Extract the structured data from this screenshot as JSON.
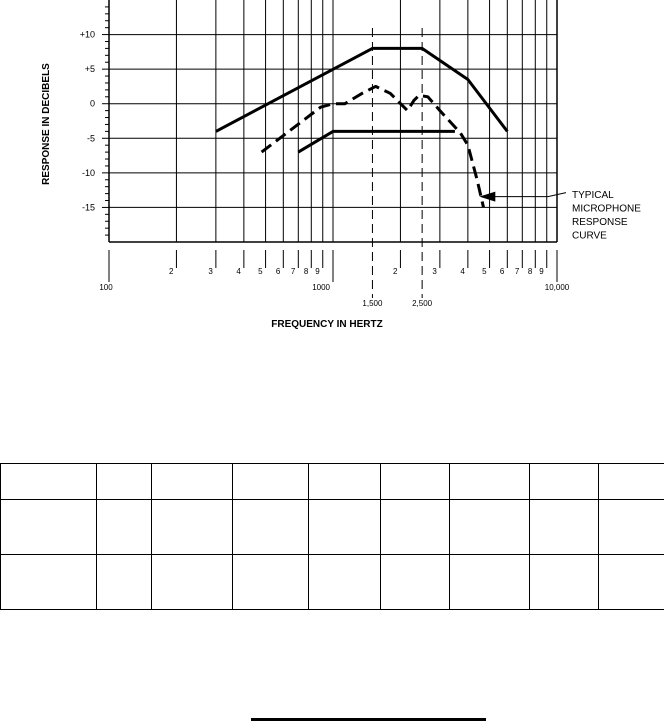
{
  "chart_data": {
    "type": "line",
    "title": "",
    "xlabel": "FREQUENCY IN HERTZ",
    "ylabel": "RESPONSE IN DECIBELS",
    "x_scale": "log",
    "xlim": [
      100,
      10000
    ],
    "ylim": [
      -20,
      15
    ],
    "y_ticks": [
      10,
      5,
      0,
      -5,
      -10,
      -15
    ],
    "y_tick_labels": [
      "+10",
      "+5",
      "0",
      "-5",
      "-10",
      "-15"
    ],
    "x_major_labels": [
      {
        "x": 100,
        "label": "100"
      },
      {
        "x": 1000,
        "label": "1000"
      },
      {
        "x": 10000,
        "label": "10,000"
      }
    ],
    "x_minor_labels": [
      {
        "x": 200,
        "label": "2"
      },
      {
        "x": 300,
        "label": "3"
      },
      {
        "x": 400,
        "label": "4"
      },
      {
        "x": 500,
        "label": "5"
      },
      {
        "x": 600,
        "label": "6"
      },
      {
        "x": 700,
        "label": "7"
      },
      {
        "x": 800,
        "label": "8"
      },
      {
        "x": 900,
        "label": "9"
      },
      {
        "x": 2000,
        "label": "2"
      },
      {
        "x": 3000,
        "label": "3"
      },
      {
        "x": 4000,
        "label": "4"
      },
      {
        "x": 5000,
        "label": "5"
      },
      {
        "x": 6000,
        "label": "6"
      },
      {
        "x": 7000,
        "label": "7"
      },
      {
        "x": 8000,
        "label": "8"
      },
      {
        "x": 9000,
        "label": "9"
      }
    ],
    "reference_lines": [
      {
        "x": 1500,
        "label": "1,500"
      },
      {
        "x": 2500,
        "label": "2,500"
      }
    ],
    "grid": true,
    "series": [
      {
        "style": "solid",
        "x": [
          300,
          1500,
          2500,
          4000,
          6000
        ],
        "y": [
          -4,
          8,
          8,
          3.5,
          -4
        ]
      },
      {
        "style": "solid",
        "x": [
          700,
          1000,
          3500
        ],
        "y": [
          -7,
          -4,
          -4
        ]
      },
      {
        "style": "dashed",
        "x": [
          480,
          880,
          1000,
          1130,
          1350,
          1550,
          1800,
          2150,
          2300,
          2420,
          2650,
          3000,
          3200,
          3700,
          4000,
          4400,
          4700
        ],
        "y": [
          -7,
          -0.5,
          0,
          0,
          1.5,
          2.5,
          1.5,
          -1,
          0.5,
          1.2,
          1,
          -1,
          -2,
          -4.2,
          -6,
          -11,
          -15
        ]
      }
    ],
    "annotations": [
      {
        "text": "TYPICAL MICROPHONE RESPONSE CURVE",
        "lines": [
          "TYPICAL",
          "MICROPHONE",
          "RESPONSE",
          "CURVE"
        ],
        "points_to_x": 4500,
        "points_to_y": -13.3
      }
    ]
  }
}
